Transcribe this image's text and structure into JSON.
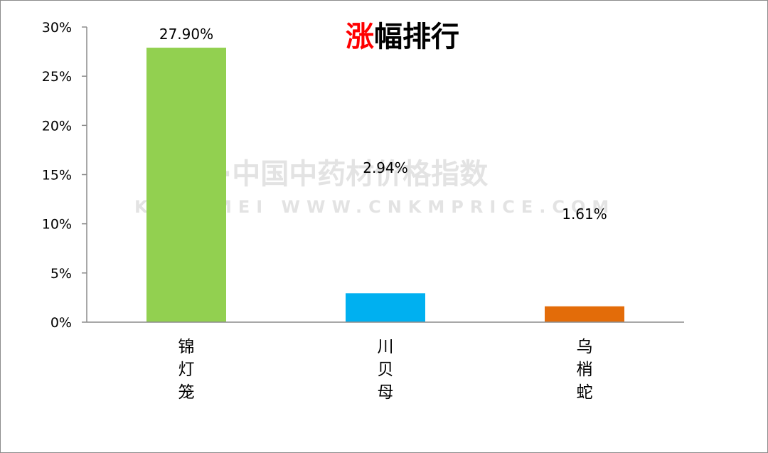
{
  "chart_data": {
    "type": "bar",
    "title_highlight": "涨",
    "title_rest": "幅排行",
    "categories": [
      "锦灯笼",
      "川贝母",
      "乌梢蛇"
    ],
    "values": [
      27.9,
      2.94,
      1.61
    ],
    "value_labels": [
      "27.90%",
      "2.94%",
      "1.61%"
    ],
    "bar_colors": [
      "#92d050",
      "#00b0f0",
      "#e36c09"
    ],
    "title_highlight_color": "#ff0000",
    "ylim": [
      0,
      30
    ],
    "yticks": [
      0,
      5,
      10,
      15,
      20,
      25,
      30
    ],
    "ytick_labels": [
      "0%",
      "5%",
      "10%",
      "15%",
      "20%",
      "25%",
      "30%"
    ],
    "grid": false,
    "legend": "none"
  },
  "watermark": {
    "line1": "康美·中国中药材价格指数",
    "line2": "KANGMEI WWW.CNKMPRICE.COM"
  }
}
